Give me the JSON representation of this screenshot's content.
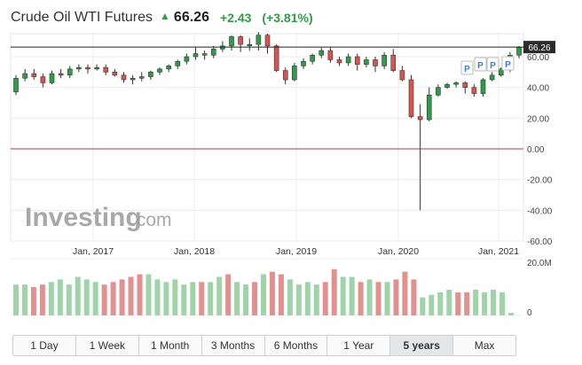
{
  "header": {
    "title": "Crude Oil WTI Futures",
    "price": "66.26",
    "change": "+2.43",
    "change_pct": "(+3.81%)",
    "arrow_icon": "up-arrow",
    "up_color": "#2e9e45"
  },
  "watermark": {
    "brand": "Investing",
    "suffix": ".com"
  },
  "price_label": "66.26",
  "volume_labels": {
    "max": "20.0M",
    "min": "0"
  },
  "markers": [
    "P",
    "P",
    "P",
    "P"
  ],
  "timeframes": [
    "1 Day",
    "1 Week",
    "1 Month",
    "3 Months",
    "6 Months",
    "1 Year",
    "5 years",
    "Max"
  ],
  "active_timeframe": "5 years",
  "chart_data": {
    "type": "candlestick",
    "title": "Crude Oil WTI Futures",
    "y_ticks": [
      "60.00",
      "40.00",
      "20.00",
      "0.00",
      "-20.00",
      "-40.00",
      "-60.00"
    ],
    "x_ticks": [
      "Jan, 2017",
      "Jan, 2018",
      "Jan, 2019",
      "Jan, 2020",
      "Jan, 2021"
    ],
    "ylim": [
      -60,
      75
    ],
    "last_price": 66.26,
    "up_color": "#2e9e45",
    "down_color": "#d9534f",
    "candles": [
      {
        "o": 37,
        "c": 46,
        "h": 48,
        "l": 35
      },
      {
        "o": 46,
        "c": 49,
        "h": 52,
        "l": 44
      },
      {
        "o": 49,
        "c": 47,
        "h": 52,
        "l": 45
      },
      {
        "o": 47,
        "c": 43,
        "h": 49,
        "l": 40
      },
      {
        "o": 43,
        "c": 49,
        "h": 51,
        "l": 42
      },
      {
        "o": 49,
        "c": 48,
        "h": 52,
        "l": 46
      },
      {
        "o": 48,
        "c": 52,
        "h": 54,
        "l": 46
      },
      {
        "o": 52,
        "c": 53,
        "h": 55,
        "l": 50
      },
      {
        "o": 53,
        "c": 52,
        "h": 55,
        "l": 49
      },
      {
        "o": 52,
        "c": 53,
        "h": 55,
        "l": 51
      },
      {
        "o": 53,
        "c": 50,
        "h": 55,
        "l": 48
      },
      {
        "o": 50,
        "c": 48,
        "h": 52,
        "l": 47
      },
      {
        "o": 48,
        "c": 45,
        "h": 50,
        "l": 43
      },
      {
        "o": 45,
        "c": 46,
        "h": 48,
        "l": 42
      },
      {
        "o": 46,
        "c": 47,
        "h": 50,
        "l": 44
      },
      {
        "o": 47,
        "c": 50,
        "h": 51,
        "l": 45
      },
      {
        "o": 50,
        "c": 52,
        "h": 53,
        "l": 48
      },
      {
        "o": 52,
        "c": 54,
        "h": 55,
        "l": 50
      },
      {
        "o": 54,
        "c": 57,
        "h": 58,
        "l": 52
      },
      {
        "o": 57,
        "c": 60,
        "h": 62,
        "l": 55
      },
      {
        "o": 60,
        "c": 62,
        "h": 66,
        "l": 58
      },
      {
        "o": 62,
        "c": 61,
        "h": 64,
        "l": 58
      },
      {
        "o": 61,
        "c": 65,
        "h": 67,
        "l": 59
      },
      {
        "o": 65,
        "c": 67,
        "h": 70,
        "l": 63
      },
      {
        "o": 67,
        "c": 73,
        "h": 74,
        "l": 64
      },
      {
        "o": 73,
        "c": 68,
        "h": 74,
        "l": 63
      },
      {
        "o": 68,
        "c": 68,
        "h": 72,
        "l": 64
      },
      {
        "o": 68,
        "c": 74,
        "h": 76,
        "l": 64
      },
      {
        "o": 74,
        "c": 67,
        "h": 75,
        "l": 62
      },
      {
        "o": 67,
        "c": 51,
        "h": 68,
        "l": 50
      },
      {
        "o": 51,
        "c": 45,
        "h": 53,
        "l": 42
      },
      {
        "o": 45,
        "c": 54,
        "h": 56,
        "l": 44
      },
      {
        "o": 54,
        "c": 57,
        "h": 59,
        "l": 52
      },
      {
        "o": 57,
        "c": 61,
        "h": 62,
        "l": 55
      },
      {
        "o": 61,
        "c": 64,
        "h": 66,
        "l": 59
      },
      {
        "o": 64,
        "c": 58,
        "h": 66,
        "l": 56
      },
      {
        "o": 58,
        "c": 56,
        "h": 60,
        "l": 54
      },
      {
        "o": 56,
        "c": 60,
        "h": 62,
        "l": 54
      },
      {
        "o": 60,
        "c": 55,
        "h": 62,
        "l": 51
      },
      {
        "o": 55,
        "c": 58,
        "h": 60,
        "l": 53
      },
      {
        "o": 58,
        "c": 54,
        "h": 60,
        "l": 50
      },
      {
        "o": 54,
        "c": 61,
        "h": 63,
        "l": 52
      },
      {
        "o": 61,
        "c": 51,
        "h": 65,
        "l": 50
      },
      {
        "o": 51,
        "c": 45,
        "h": 54,
        "l": 44
      },
      {
        "o": 45,
        "c": 21,
        "h": 48,
        "l": 20
      },
      {
        "o": 21,
        "c": 19,
        "h": 29,
        "l": -40
      },
      {
        "o": 19,
        "c": 35,
        "h": 40,
        "l": 18
      },
      {
        "o": 35,
        "c": 40,
        "h": 42,
        "l": 34
      },
      {
        "o": 40,
        "c": 42,
        "h": 43,
        "l": 39
      },
      {
        "o": 42,
        "c": 43,
        "h": 44,
        "l": 40
      },
      {
        "o": 43,
        "c": 40,
        "h": 44,
        "l": 36
      },
      {
        "o": 40,
        "c": 36,
        "h": 42,
        "l": 34
      },
      {
        "o": 36,
        "c": 45,
        "h": 46,
        "l": 34
      },
      {
        "o": 45,
        "c": 48,
        "h": 50,
        "l": 44
      },
      {
        "o": 48,
        "c": 52,
        "h": 53,
        "l": 47
      },
      {
        "o": 52,
        "c": 61,
        "h": 63,
        "l": 50
      },
      {
        "o": 61,
        "c": 66,
        "h": 67,
        "l": 59
      }
    ],
    "volume": [
      {
        "v": 12,
        "up": true
      },
      {
        "v": 12,
        "up": true
      },
      {
        "v": 11,
        "up": false
      },
      {
        "v": 12,
        "up": false
      },
      {
        "v": 13,
        "up": true
      },
      {
        "v": 14,
        "up": true
      },
      {
        "v": 12,
        "up": true
      },
      {
        "v": 15,
        "up": true
      },
      {
        "v": 14,
        "up": true
      },
      {
        "v": 13,
        "up": true
      },
      {
        "v": 12,
        "up": false
      },
      {
        "v": 13,
        "up": false
      },
      {
        "v": 14,
        "up": false
      },
      {
        "v": 15,
        "up": false
      },
      {
        "v": 16,
        "up": false
      },
      {
        "v": 16,
        "up": true
      },
      {
        "v": 14,
        "up": true
      },
      {
        "v": 13,
        "up": true
      },
      {
        "v": 14,
        "up": true
      },
      {
        "v": 12,
        "up": true
      },
      {
        "v": 13,
        "up": true
      },
      {
        "v": 13,
        "up": false
      },
      {
        "v": 13,
        "up": true
      },
      {
        "v": 15,
        "up": true
      },
      {
        "v": 16,
        "up": false
      },
      {
        "v": 13,
        "up": true
      },
      {
        "v": 12,
        "up": true
      },
      {
        "v": 13,
        "up": false
      },
      {
        "v": 16,
        "up": true
      },
      {
        "v": 17,
        "up": false
      },
      {
        "v": 16,
        "up": false
      },
      {
        "v": 14,
        "up": true
      },
      {
        "v": 12,
        "up": true
      },
      {
        "v": 13,
        "up": true
      },
      {
        "v": 12,
        "up": true
      },
      {
        "v": 13,
        "up": false
      },
      {
        "v": 18,
        "up": false
      },
      {
        "v": 15,
        "up": true
      },
      {
        "v": 15,
        "up": true
      },
      {
        "v": 13,
        "up": false
      },
      {
        "v": 14,
        "up": true
      },
      {
        "v": 13,
        "up": false
      },
      {
        "v": 13,
        "up": true
      },
      {
        "v": 14,
        "up": false
      },
      {
        "v": 17,
        "up": false
      },
      {
        "v": 14,
        "up": false
      },
      {
        "v": 7,
        "up": true
      },
      {
        "v": 8,
        "up": true
      },
      {
        "v": 9,
        "up": true
      },
      {
        "v": 10,
        "up": true
      },
      {
        "v": 9,
        "up": false
      },
      {
        "v": 9,
        "up": false
      },
      {
        "v": 10,
        "up": true
      },
      {
        "v": 9,
        "up": true
      },
      {
        "v": 10,
        "up": true
      },
      {
        "v": 9,
        "up": true
      },
      {
        "v": 1,
        "up": true
      }
    ]
  }
}
